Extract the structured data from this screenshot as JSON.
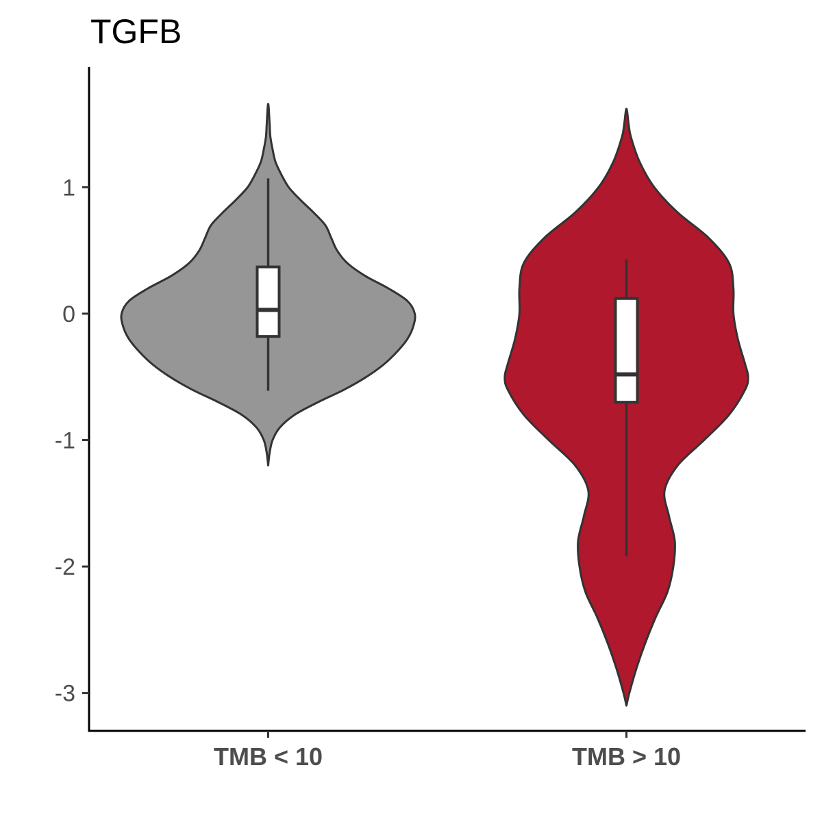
{
  "chart_data": {
    "type": "violin",
    "title": "TGFB",
    "xlabel": "",
    "ylabel": "",
    "categories": [
      "TMB < 10",
      "TMB > 10"
    ],
    "colors": [
      "#969696",
      "#b0182d"
    ],
    "ylim": [
      -3.3,
      1.95
    ],
    "yticks": [
      1,
      0,
      -1,
      -2,
      -3
    ],
    "grid": false,
    "legend": "none",
    "groups": [
      {
        "name": "TMB < 10",
        "color": "#969696",
        "box": {
          "whisker_low": -0.61,
          "q1": -0.18,
          "median": 0.03,
          "q3": 0.37,
          "whisker_high": 1.07
        },
        "violin_range": [
          -1.2,
          1.66
        ],
        "density": [
          [
            -1.2,
            0.0
          ],
          [
            -1.1,
            0.01
          ],
          [
            -1.0,
            0.03
          ],
          [
            -0.9,
            0.08
          ],
          [
            -0.8,
            0.18
          ],
          [
            -0.7,
            0.34
          ],
          [
            -0.6,
            0.52
          ],
          [
            -0.5,
            0.67
          ],
          [
            -0.4,
            0.79
          ],
          [
            -0.3,
            0.88
          ],
          [
            -0.2,
            0.95
          ],
          [
            -0.1,
            0.99
          ],
          [
            0.0,
            1.0
          ],
          [
            0.1,
            0.95
          ],
          [
            0.2,
            0.82
          ],
          [
            0.3,
            0.66
          ],
          [
            0.4,
            0.54
          ],
          [
            0.5,
            0.47
          ],
          [
            0.6,
            0.43
          ],
          [
            0.7,
            0.39
          ],
          [
            0.8,
            0.31
          ],
          [
            0.9,
            0.22
          ],
          [
            1.0,
            0.14
          ],
          [
            1.1,
            0.09
          ],
          [
            1.2,
            0.05
          ],
          [
            1.3,
            0.03
          ],
          [
            1.4,
            0.015
          ],
          [
            1.5,
            0.01
          ],
          [
            1.66,
            0.0
          ]
        ]
      },
      {
        "name": "TMB > 10",
        "color": "#b0182d",
        "box": {
          "whisker_low": -1.92,
          "q1": -0.7,
          "median": -0.48,
          "q3": 0.12,
          "whisker_high": 0.43
        },
        "violin_range": [
          -3.1,
          1.62
        ],
        "density": [
          [
            -3.1,
            0.0
          ],
          [
            -3.0,
            0.02
          ],
          [
            -2.8,
            0.07
          ],
          [
            -2.6,
            0.13
          ],
          [
            -2.4,
            0.2
          ],
          [
            -2.2,
            0.28
          ],
          [
            -2.0,
            0.32
          ],
          [
            -1.8,
            0.33
          ],
          [
            -1.6,
            0.29
          ],
          [
            -1.4,
            0.26
          ],
          [
            -1.2,
            0.35
          ],
          [
            -1.0,
            0.53
          ],
          [
            -0.8,
            0.7
          ],
          [
            -0.6,
            0.81
          ],
          [
            -0.5,
            0.83
          ],
          [
            -0.4,
            0.81
          ],
          [
            -0.2,
            0.76
          ],
          [
            0.0,
            0.73
          ],
          [
            0.2,
            0.73
          ],
          [
            0.4,
            0.7
          ],
          [
            0.6,
            0.56
          ],
          [
            0.8,
            0.35
          ],
          [
            1.0,
            0.19
          ],
          [
            1.2,
            0.09
          ],
          [
            1.4,
            0.03
          ],
          [
            1.5,
            0.015
          ],
          [
            1.62,
            0.0
          ]
        ]
      }
    ]
  }
}
